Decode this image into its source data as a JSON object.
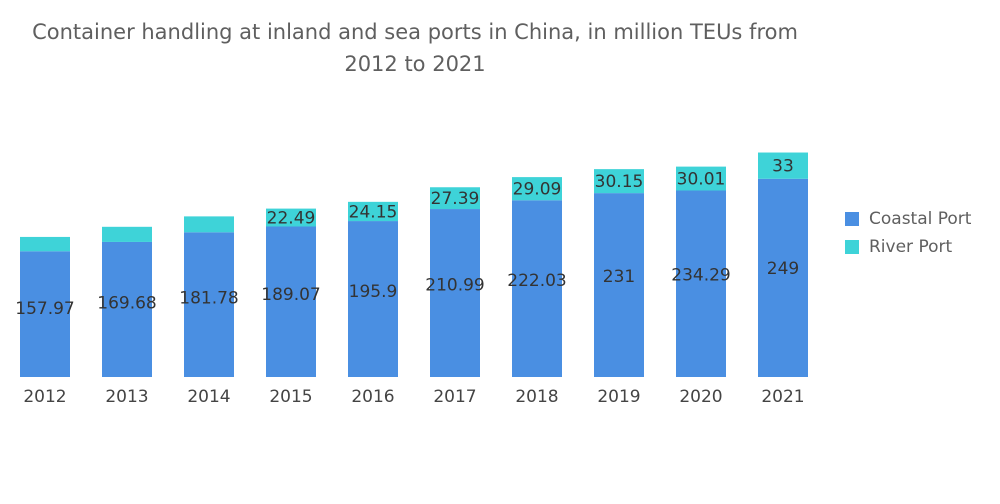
{
  "chart_data": {
    "type": "bar",
    "stacked": true,
    "title_line1": "Container handling at inland and sea ports in China, in million TEUs from",
    "title_line2": "2012 to 2021",
    "categories": [
      "2012",
      "2013",
      "2014",
      "2015",
      "2016",
      "2017",
      "2018",
      "2019",
      "2020",
      "2021"
    ],
    "series": [
      {
        "name": "Coastal Port",
        "color": "#4a8fe2",
        "values": [
          157.97,
          169.68,
          181.78,
          189.07,
          195.9,
          210.99,
          222.03,
          231,
          234.29,
          249
        ],
        "labels": [
          "157.97",
          "169.68",
          "181.78",
          "189.07",
          "195.9",
          "210.99",
          "222.03",
          "231",
          "234.29",
          "249"
        ]
      },
      {
        "name": "River Port",
        "color": "#3ed3d8",
        "values": [
          18,
          19,
          20,
          22.49,
          24.15,
          27.39,
          29.09,
          30.15,
          30.01,
          33
        ],
        "labels": [
          "",
          "",
          "",
          "22.49",
          "24.15",
          "27.39",
          "29.09",
          "30.15",
          "30.01",
          "33"
        ]
      }
    ],
    "legend_position": "right",
    "grid": false
  }
}
